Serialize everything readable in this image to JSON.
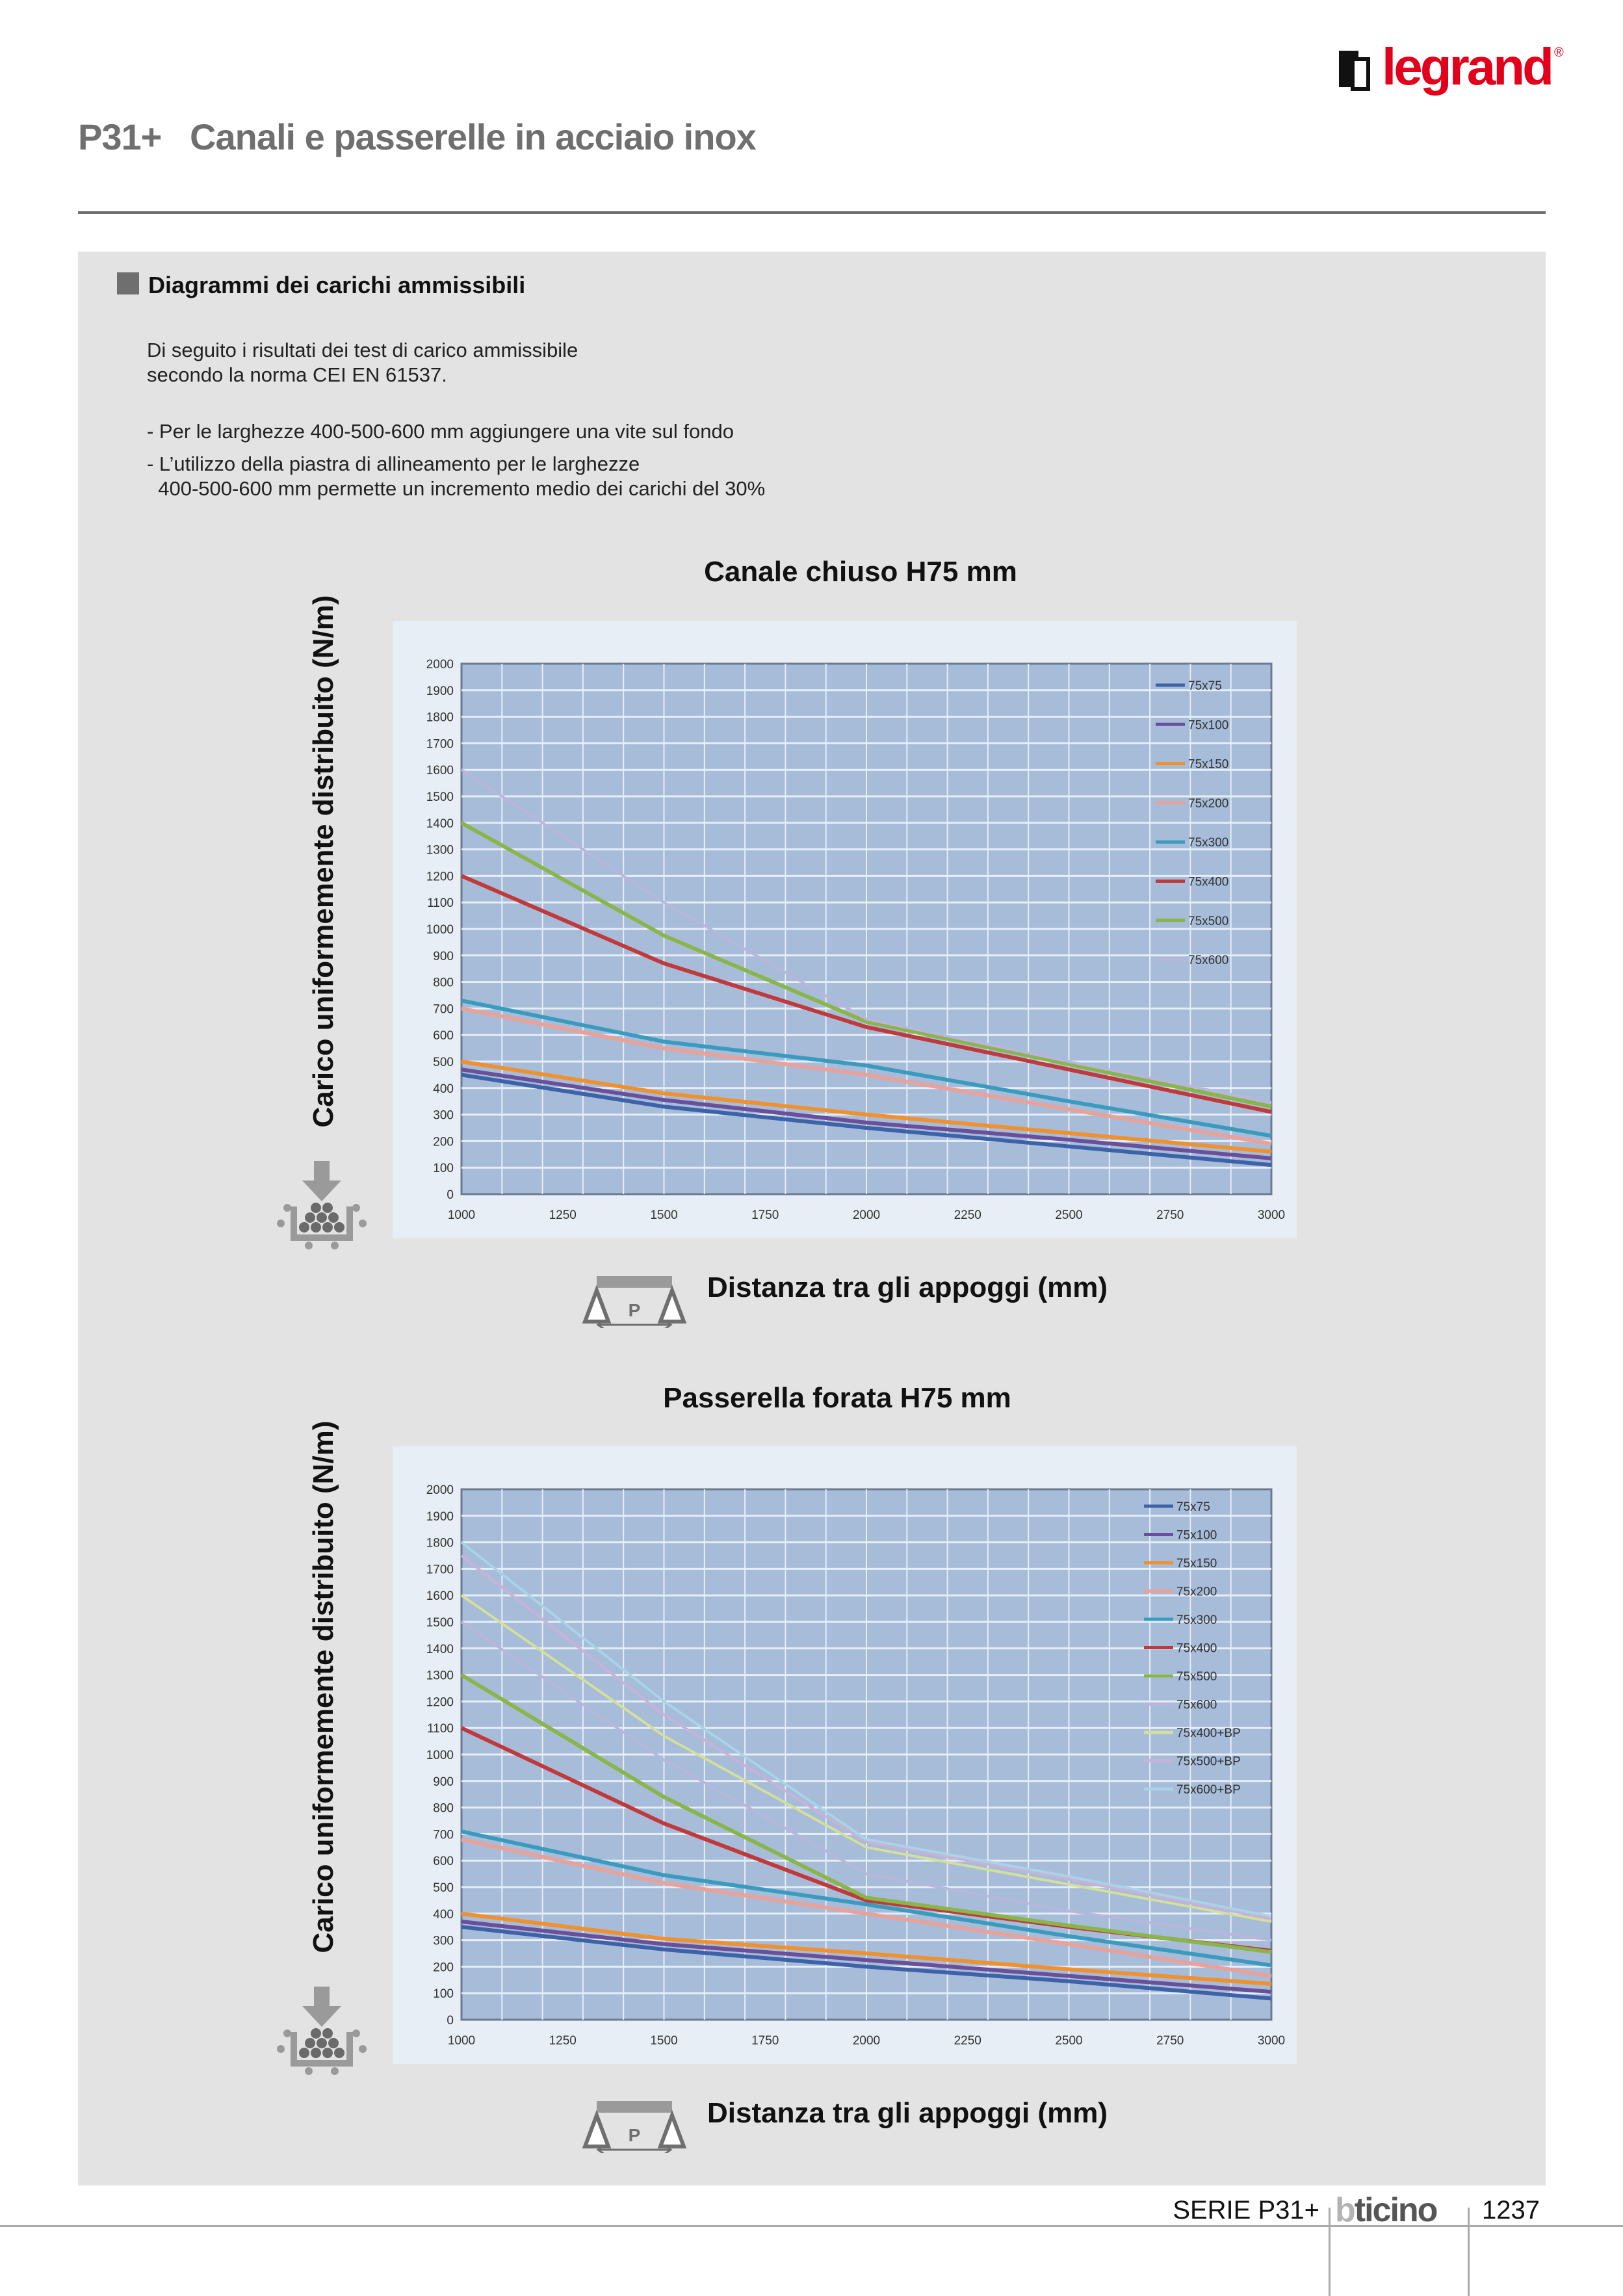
{
  "brand": {
    "name": "legrand",
    "registered": "®"
  },
  "header": {
    "series": "P31+",
    "title": "Canali e passerelle in acciaio inox"
  },
  "section": {
    "heading": "Diagrammi dei carichi ammissibili",
    "intro": [
      "Di seguito i risultati dei test di carico ammissibile",
      "secondo la norma CEI EN 61537."
    ],
    "notes": [
      "- Per le larghezze 400-500-600 mm aggiungere una vite sul fondo",
      "- L’utilizzo della piastra di allineamento per le larghezze",
      "  400-500-600 mm permette un incremento medio dei carichi del 30%"
    ]
  },
  "icons": {
    "load": "distributed-load-icon",
    "span": "support-span-icon",
    "span_letter": "P"
  },
  "footer": {
    "series": "SERIE P31+",
    "brand_b": "b",
    "brand_rest": "ticino",
    "page": "1237"
  },
  "chart_data": [
    {
      "type": "line",
      "title": "Canale chiuso H75 mm",
      "xlabel": "Distanza tra gli appoggi (mm)",
      "ylabel": "Carico uniformemente distribuito (N/m)",
      "xlim": [
        1000,
        3000
      ],
      "ylim": [
        0,
        2000
      ],
      "xticks": [
        "1000",
        "1250",
        "1500",
        "1750",
        "2000",
        "2250",
        "2500",
        "2750",
        "3000"
      ],
      "yticks": [
        "0",
        "100",
        "200",
        "300",
        "400",
        "500",
        "600",
        "700",
        "800",
        "900",
        "1000",
        "1100",
        "1200",
        "1300",
        "1400",
        "1500",
        "1600",
        "1700",
        "1800",
        "1900",
        "2000"
      ],
      "grid": true,
      "legend": "top-right",
      "x": [
        1000,
        1500,
        2000,
        2500,
        3000
      ],
      "series": [
        {
          "name": "75x75",
          "color": "#3d62a8",
          "values": [
            450,
            330,
            250,
            180,
            110
          ]
        },
        {
          "name": "75x100",
          "color": "#6a4f9a",
          "values": [
            470,
            355,
            270,
            205,
            135
          ]
        },
        {
          "name": "75x150",
          "color": "#f0912f",
          "values": [
            500,
            380,
            300,
            230,
            160
          ]
        },
        {
          "name": "75x200",
          "color": "#e8a29a",
          "values": [
            700,
            550,
            450,
            320,
            190
          ]
        },
        {
          "name": "75x300",
          "color": "#3a9bbf",
          "values": [
            730,
            575,
            485,
            350,
            220
          ]
        },
        {
          "name": "75x400",
          "color": "#c0393b",
          "values": [
            1200,
            870,
            630,
            470,
            310
          ]
        },
        {
          "name": "75x500",
          "color": "#8ab54a",
          "values": [
            1400,
            975,
            650,
            490,
            330
          ]
        },
        {
          "name": "75x600",
          "color": "#b8b6dc",
          "values": [
            1600,
            1100,
            660,
            500,
            345
          ]
        }
      ]
    },
    {
      "type": "line",
      "title": "Passerella forata H75 mm",
      "xlabel": "Distanza tra gli appoggi (mm)",
      "ylabel": "Carico uniformemente distribuito (N/m)",
      "xlim": [
        1000,
        3000
      ],
      "ylim": [
        0,
        2000
      ],
      "xticks": [
        "1000",
        "1250",
        "1500",
        "1750",
        "2000",
        "2250",
        "2500",
        "2750",
        "3000"
      ],
      "yticks": [
        "0",
        "100",
        "200",
        "300",
        "400",
        "500",
        "600",
        "700",
        "800",
        "900",
        "1000",
        "1100",
        "1200",
        "1300",
        "1400",
        "1500",
        "1600",
        "1700",
        "1800",
        "1900",
        "2000"
      ],
      "grid": true,
      "legend": "top-right",
      "x": [
        1000,
        1500,
        2000,
        2500,
        3000
      ],
      "series": [
        {
          "name": "75x75",
          "color": "#3d62a8",
          "values": [
            350,
            265,
            200,
            145,
            80
          ]
        },
        {
          "name": "75x100",
          "color": "#6a4f9a",
          "values": [
            370,
            285,
            225,
            165,
            105
          ]
        },
        {
          "name": "75x150",
          "color": "#f0912f",
          "values": [
            400,
            305,
            250,
            190,
            135
          ]
        },
        {
          "name": "75x200",
          "color": "#e8a29a",
          "values": [
            680,
            515,
            400,
            285,
            165
          ]
        },
        {
          "name": "75x300",
          "color": "#3a9bbf",
          "values": [
            710,
            545,
            435,
            315,
            205
          ]
        },
        {
          "name": "75x400",
          "color": "#c0393b",
          "values": [
            1100,
            740,
            450,
            350,
            260
          ]
        },
        {
          "name": "75x500",
          "color": "#8ab54a",
          "values": [
            1300,
            840,
            460,
            355,
            255
          ]
        },
        {
          "name": "75x600",
          "color": "#b8b6dc",
          "values": [
            1500,
            980,
            550,
            410,
            300
          ]
        },
        {
          "name": "75x400+BP",
          "color": "#d4e09a",
          "values": [
            1600,
            1070,
            650,
            510,
            370
          ]
        },
        {
          "name": "75x500+BP",
          "color": "#c9b2d8",
          "values": [
            1750,
            1150,
            670,
            530,
            380
          ]
        },
        {
          "name": "75x600+BP",
          "color": "#a8d4e8",
          "values": [
            1800,
            1200,
            680,
            540,
            390
          ]
        }
      ]
    }
  ]
}
